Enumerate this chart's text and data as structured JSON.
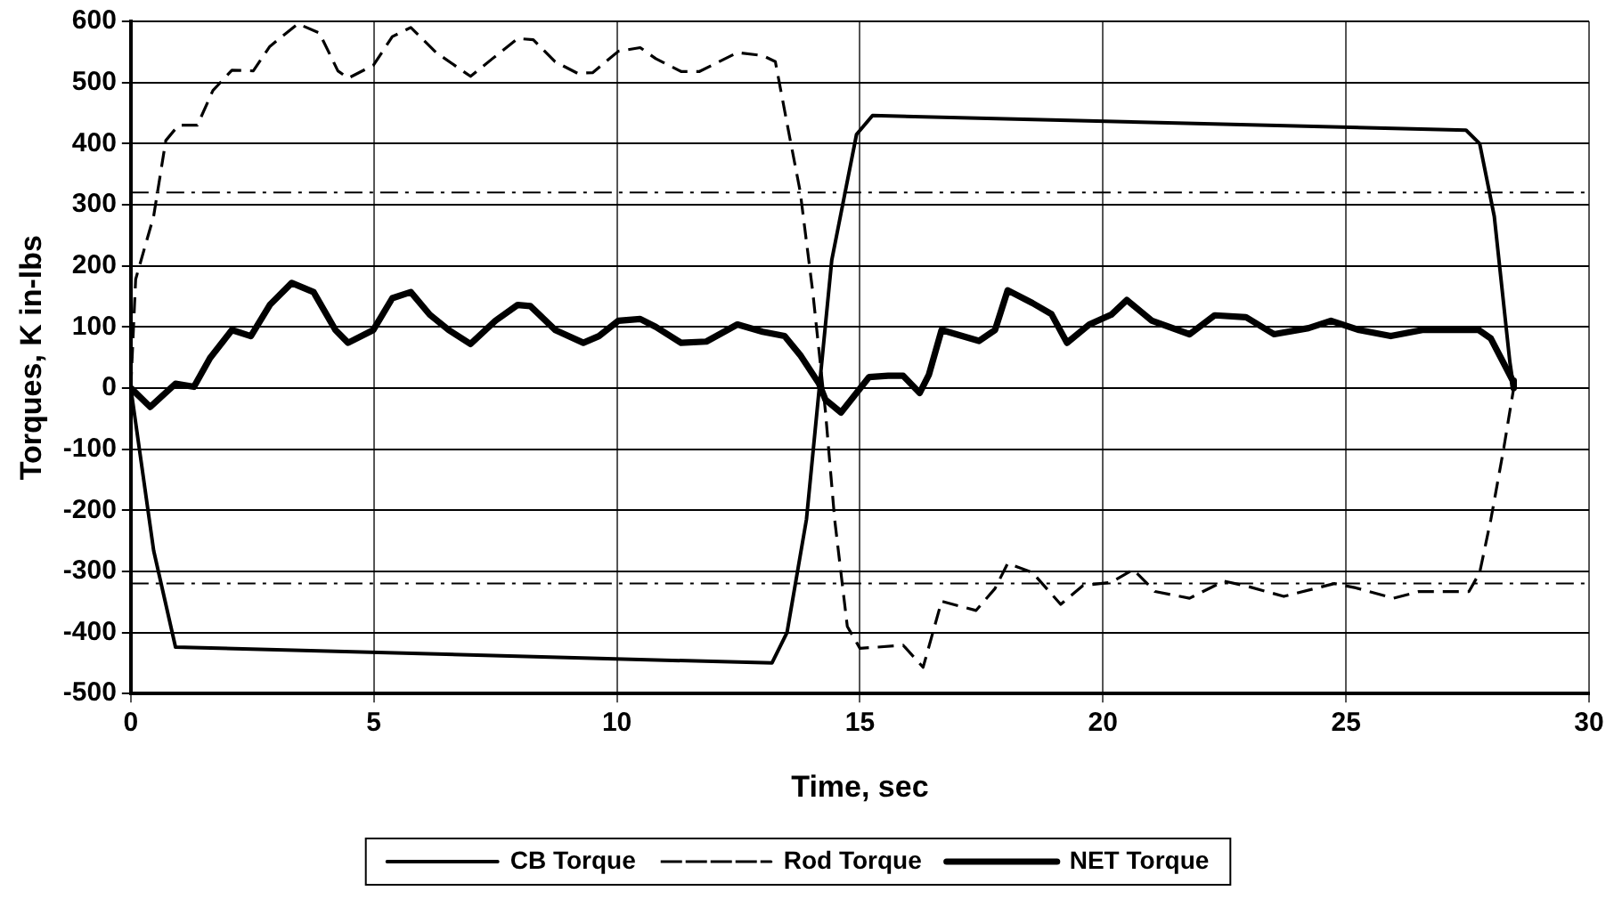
{
  "chart_data": {
    "type": "line",
    "xlabel": "Time, sec",
    "ylabel": "Torques, K in-lbs",
    "xlim": [
      0,
      30
    ],
    "xticks": [
      0,
      5,
      10,
      15,
      20,
      25,
      30
    ],
    "ylim": [
      -500,
      600
    ],
    "yticks": [
      -500,
      -400,
      -300,
      -200,
      -100,
      0,
      100,
      200,
      300,
      400,
      500,
      600
    ],
    "grid": true,
    "legend": "bottom",
    "marker": "none",
    "ref_lines": [
      {
        "axis": "y",
        "value": 320,
        "color": "#000000",
        "line_style": "dashdot"
      },
      {
        "axis": "y",
        "value": -320,
        "color": "#000000",
        "line_style": "dashdot"
      }
    ],
    "series": [
      {
        "name": "CB Torque",
        "color": "#000000",
        "line_style": "solid",
        "x": [
          0,
          0.47,
          0.92,
          13.19,
          13.5,
          13.9,
          14.16,
          14.42,
          14.93,
          15.26,
          27.47,
          27.75,
          28.05,
          28.37,
          28.45
        ],
        "values": [
          0,
          -266,
          -424,
          -450,
          -400,
          -215,
          -3,
          209,
          415,
          446,
          422,
          400,
          281,
          43,
          0
        ]
      },
      {
        "name": "Rod Torque",
        "color": "#000000",
        "line_style": "dashed",
        "x": [
          0,
          0.1,
          0.47,
          0.72,
          0.98,
          1.37,
          1.69,
          2.08,
          2.52,
          2.86,
          3.44,
          3.88,
          4.26,
          4.47,
          4.99,
          5.38,
          5.76,
          6.28,
          6.99,
          7.44,
          7.96,
          8.28,
          8.73,
          9.19,
          9.5,
          10.03,
          10.48,
          10.8,
          11.32,
          11.7,
          12.48,
          13.0,
          13.26,
          13.52,
          13.77,
          14.03,
          14.29,
          14.48,
          14.74,
          15.0,
          15.89,
          16.3,
          16.68,
          17.39,
          17.78,
          18.04,
          18.55,
          19.13,
          19.59,
          20.17,
          20.62,
          21.07,
          21.78,
          22.49,
          23.0,
          23.72,
          24.76,
          25.2,
          25.98,
          26.5,
          27.53,
          27.75,
          27.98,
          28.24,
          28.45
        ],
        "values": [
          0,
          178,
          281,
          405,
          430,
          430,
          487,
          520,
          519,
          559,
          596,
          581,
          519,
          507,
          528,
          575,
          590,
          549,
          510,
          539,
          572,
          570,
          534,
          515,
          516,
          551,
          557,
          539,
          518,
          518,
          549,
          544,
          534,
          425,
          322,
          157,
          -38,
          -215,
          -390,
          -426,
          -421,
          -457,
          -349,
          -364,
          -328,
          -287,
          -302,
          -354,
          -323,
          -318,
          -297,
          -333,
          -344,
          -316,
          -325,
          -341,
          -320,
          -327,
          -344,
          -333,
          -333,
          -302,
          -215,
          -101,
          0
        ]
      },
      {
        "name": "NET Torque",
        "color": "#000000",
        "line_style": "solid",
        "x": [
          0,
          0.4,
          0.92,
          1.3,
          1.63,
          2.08,
          2.47,
          2.86,
          3.31,
          3.76,
          4.21,
          4.47,
          4.99,
          5.38,
          5.76,
          6.15,
          6.54,
          6.99,
          7.5,
          7.96,
          8.22,
          8.73,
          9.31,
          9.63,
          10.03,
          10.48,
          10.8,
          11.32,
          11.84,
          12.48,
          13.0,
          13.45,
          13.77,
          14.16,
          14.29,
          14.61,
          15.19,
          15.58,
          15.89,
          16.23,
          16.42,
          16.68,
          17.45,
          17.78,
          18.04,
          18.55,
          18.94,
          19.26,
          19.72,
          20.17,
          20.49,
          21.01,
          21.78,
          22.3,
          22.94,
          23.52,
          24.23,
          24.69,
          25.27,
          25.92,
          26.57,
          27.73,
          27.98,
          28.43,
          28.45
        ],
        "values": [
          0,
          -31,
          7,
          2,
          49,
          95,
          85,
          136,
          172,
          157,
          95,
          74,
          95,
          147,
          157,
          120,
          95,
          72,
          110,
          136,
          134,
          95,
          74,
          85,
          110,
          113,
          100,
          74,
          76,
          104,
          92,
          85,
          54,
          7,
          -19,
          -40,
          18,
          20,
          20,
          -8,
          22,
          95,
          77,
          95,
          160,
          139,
          121,
          74,
          104,
          120,
          144,
          110,
          88,
          119,
          116,
          88,
          98,
          110,
          95,
          85,
          95,
          95,
          81,
          12,
          0
        ]
      }
    ]
  }
}
